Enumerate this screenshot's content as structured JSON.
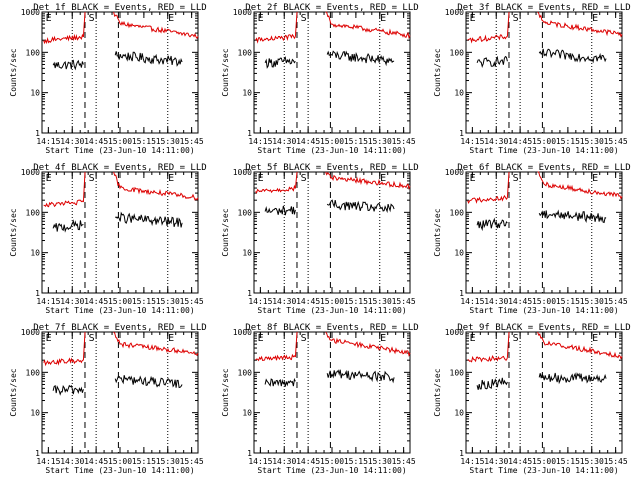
{
  "figure": {
    "background": "#ffffff",
    "axis_color": "#000000"
  },
  "chart_data": [
    {
      "type": "line",
      "title": "Det 1f BLACK = Events, RED = LLD",
      "xlabel": "Start Time (23-Jun-10 14:11:00)",
      "ylabel": "Counts/sec",
      "x_ticks": [
        "14:15",
        "14:30",
        "14:45",
        "15:00",
        "15:15",
        "15:30",
        "15:45"
      ],
      "xlim": [
        "14:11",
        "15:49"
      ],
      "y_scale": "log",
      "ylim": [
        1,
        1000
      ],
      "y_ticks": [
        "1",
        "10",
        "100",
        "1000"
      ],
      "dotted_times": [
        "14:30",
        "14:45",
        "15:30"
      ],
      "dashed_times": [
        "14:38",
        "14:59"
      ],
      "markers": [
        {
          "label": "E",
          "time": "14:12"
        },
        {
          "label": "S",
          "time": "14:39"
        },
        {
          "label": "E",
          "time": "15:29"
        }
      ],
      "series": [
        {
          "name": "Events",
          "color": "#000000",
          "segments": [
            [
              [
                "14:18",
                48
              ],
              [
                "14:37",
                50
              ]
            ],
            [
              [
                "14:57",
                85
              ],
              [
                "15:39",
                58
              ]
            ]
          ]
        },
        {
          "name": "LLD",
          "color": "#dd0000",
          "segments": [
            [
              [
                "14:12",
                195
              ],
              [
                "14:37",
                240
              ]
            ],
            [
              [
                "14:37",
                240
              ],
              [
                "14:38",
                1000
              ]
            ],
            [
              [
                "14:56",
                1000
              ],
              [
                "15:00",
                520
              ],
              [
                "15:49",
                250
              ]
            ]
          ]
        }
      ]
    },
    {
      "type": "line",
      "title": "Det 2f BLACK = Events, RED = LLD",
      "xlabel": "Start Time (23-Jun-10 14:11:00)",
      "ylabel": "Counts/sec",
      "x_ticks": [
        "14:15",
        "14:30",
        "14:45",
        "15:00",
        "15:15",
        "15:30",
        "15:45"
      ],
      "xlim": [
        "14:11",
        "15:49"
      ],
      "y_scale": "log",
      "ylim": [
        1,
        1000
      ],
      "y_ticks": [
        "1",
        "10",
        "100",
        "1000"
      ],
      "dotted_times": [
        "14:30",
        "14:45",
        "15:30"
      ],
      "dashed_times": [
        "14:38",
        "14:59"
      ],
      "markers": [
        {
          "label": "E",
          "time": "14:12"
        },
        {
          "label": "S",
          "time": "14:39"
        },
        {
          "label": "E",
          "time": "15:29"
        }
      ],
      "series": [
        {
          "name": "Events",
          "color": "#000000",
          "segments": [
            [
              [
                "14:18",
                55
              ],
              [
                "14:37",
                60
              ]
            ],
            [
              [
                "14:57",
                88
              ],
              [
                "15:39",
                60
              ]
            ]
          ]
        },
        {
          "name": "LLD",
          "color": "#dd0000",
          "segments": [
            [
              [
                "14:12",
                200
              ],
              [
                "14:37",
                245
              ]
            ],
            [
              [
                "14:37",
                245
              ],
              [
                "14:38",
                1000
              ]
            ],
            [
              [
                "14:56",
                1000
              ],
              [
                "15:00",
                500
              ],
              [
                "15:49",
                260
              ]
            ]
          ]
        }
      ]
    },
    {
      "type": "line",
      "title": "Det 3f BLACK = Events, RED = LLD",
      "xlabel": "Start Time (23-Jun-10 14:11:00)",
      "ylabel": "Counts/sec",
      "x_ticks": [
        "14:15",
        "14:30",
        "14:45",
        "15:00",
        "15:15",
        "15:30",
        "15:45"
      ],
      "xlim": [
        "14:11",
        "15:49"
      ],
      "y_scale": "log",
      "ylim": [
        1,
        1000
      ],
      "y_ticks": [
        "1",
        "10",
        "100",
        "1000"
      ],
      "dotted_times": [
        "14:30",
        "14:45",
        "15:30"
      ],
      "dashed_times": [
        "14:38",
        "14:59"
      ],
      "markers": [
        {
          "label": "E",
          "time": "14:12"
        },
        {
          "label": "S",
          "time": "14:39"
        },
        {
          "label": "E",
          "time": "15:29"
        }
      ],
      "series": [
        {
          "name": "Events",
          "color": "#000000",
          "segments": [
            [
              [
                "14:18",
                55
              ],
              [
                "14:37",
                60
              ]
            ],
            [
              [
                "14:57",
                95
              ],
              [
                "15:39",
                70
              ]
            ]
          ]
        },
        {
          "name": "LLD",
          "color": "#dd0000",
          "segments": [
            [
              [
                "14:12",
                200
              ],
              [
                "14:37",
                245
              ]
            ],
            [
              [
                "14:37",
                245
              ],
              [
                "14:38",
                1000
              ]
            ],
            [
              [
                "14:56",
                1000
              ],
              [
                "15:00",
                550
              ],
              [
                "15:49",
                280
              ]
            ]
          ]
        }
      ]
    },
    {
      "type": "line",
      "title": "Det 4f BLACK = Events, RED = LLD",
      "xlabel": "Start Time (23-Jun-10 14:11:00)",
      "ylabel": "Counts/sec",
      "x_ticks": [
        "14:15",
        "14:30",
        "14:45",
        "15:00",
        "15:15",
        "15:30",
        "15:45"
      ],
      "xlim": [
        "14:11",
        "15:49"
      ],
      "y_scale": "log",
      "ylim": [
        1,
        1000
      ],
      "y_ticks": [
        "1",
        "10",
        "100",
        "1000"
      ],
      "dotted_times": [
        "14:30",
        "14:45",
        "15:30"
      ],
      "dashed_times": [
        "14:38",
        "14:59"
      ],
      "markers": [
        {
          "label": "E",
          "time": "14:12"
        },
        {
          "label": "S",
          "time": "14:39"
        },
        {
          "label": "E",
          "time": "15:29"
        }
      ],
      "series": [
        {
          "name": "Events",
          "color": "#000000",
          "segments": [
            [
              [
                "14:18",
                40
              ],
              [
                "14:37",
                50
              ]
            ],
            [
              [
                "14:57",
                75
              ],
              [
                "15:39",
                55
              ]
            ]
          ]
        },
        {
          "name": "LLD",
          "color": "#dd0000",
          "segments": [
            [
              [
                "14:12",
                150
              ],
              [
                "14:37",
                180
              ]
            ],
            [
              [
                "14:37",
                180
              ],
              [
                "14:38",
                1000
              ]
            ],
            [
              [
                "14:56",
                1000
              ],
              [
                "15:00",
                400
              ],
              [
                "15:49",
                230
              ]
            ]
          ]
        }
      ]
    },
    {
      "type": "line",
      "title": "Det 5f BLACK = Events, RED = LLD",
      "xlabel": "Start Time (23-Jun-10 14:11:00)",
      "ylabel": "Counts/sec",
      "x_ticks": [
        "14:15",
        "14:30",
        "14:45",
        "15:00",
        "15:15",
        "15:30",
        "15:45"
      ],
      "xlim": [
        "14:11",
        "15:49"
      ],
      "y_scale": "log",
      "ylim": [
        1,
        1000
      ],
      "y_ticks": [
        "1",
        "10",
        "100",
        "1000"
      ],
      "dotted_times": [
        "14:30",
        "14:45",
        "15:30"
      ],
      "dashed_times": [
        "14:38",
        "14:59"
      ],
      "markers": [
        {
          "label": "E",
          "time": "14:12"
        },
        {
          "label": "S",
          "time": "14:39"
        },
        {
          "label": "E",
          "time": "15:29"
        }
      ],
      "series": [
        {
          "name": "Events",
          "color": "#000000",
          "segments": [
            [
              [
                "14:18",
                105
              ],
              [
                "14:37",
                115
              ]
            ],
            [
              [
                "14:57",
                160
              ],
              [
                "15:39",
                120
              ]
            ]
          ]
        },
        {
          "name": "LLD",
          "color": "#dd0000",
          "segments": [
            [
              [
                "14:12",
                330
              ],
              [
                "14:37",
                390
              ]
            ],
            [
              [
                "14:37",
                390
              ],
              [
                "14:38",
                1000
              ]
            ],
            [
              [
                "14:56",
                1000
              ],
              [
                "15:00",
                720
              ],
              [
                "15:49",
                440
              ]
            ]
          ]
        }
      ]
    },
    {
      "type": "line",
      "title": "Det 6f BLACK = Events, RED = LLD",
      "xlabel": "Start Time (23-Jun-10 14:11:00)",
      "ylabel": "Counts/sec",
      "x_ticks": [
        "14:15",
        "14:30",
        "14:45",
        "15:00",
        "15:15",
        "15:30",
        "15:45"
      ],
      "xlim": [
        "14:11",
        "15:49"
      ],
      "y_scale": "log",
      "ylim": [
        1,
        1000
      ],
      "y_ticks": [
        "1",
        "10",
        "100",
        "1000"
      ],
      "dotted_times": [
        "14:30",
        "14:45",
        "15:30"
      ],
      "dashed_times": [
        "14:38",
        "14:59"
      ],
      "markers": [
        {
          "label": "E",
          "time": "14:12"
        },
        {
          "label": "S",
          "time": "14:39"
        },
        {
          "label": "E",
          "time": "15:29"
        }
      ],
      "series": [
        {
          "name": "Events",
          "color": "#000000",
          "segments": [
            [
              [
                "14:18",
                48
              ],
              [
                "14:37",
                55
              ]
            ],
            [
              [
                "14:57",
                95
              ],
              [
                "15:39",
                72
              ]
            ]
          ]
        },
        {
          "name": "LLD",
          "color": "#dd0000",
          "segments": [
            [
              [
                "14:12",
                195
              ],
              [
                "14:37",
                230
              ]
            ],
            [
              [
                "14:37",
                230
              ],
              [
                "14:38",
                1000
              ]
            ],
            [
              [
                "14:56",
                1000
              ],
              [
                "15:00",
                500
              ],
              [
                "15:49",
                250
              ]
            ]
          ]
        }
      ]
    },
    {
      "type": "line",
      "title": "Det 7f BLACK = Events, RED = LLD",
      "xlabel": "Start Time (23-Jun-10 14:11:00)",
      "ylabel": "Counts/sec",
      "x_ticks": [
        "14:15",
        "14:30",
        "14:45",
        "15:00",
        "15:15",
        "15:30",
        "15:45"
      ],
      "xlim": [
        "14:11",
        "15:49"
      ],
      "y_scale": "log",
      "ylim": [
        1,
        1000
      ],
      "y_ticks": [
        "1",
        "10",
        "100",
        "1000"
      ],
      "dotted_times": [
        "14:30",
        "14:45",
        "15:30"
      ],
      "dashed_times": [
        "14:38",
        "14:59"
      ],
      "markers": [
        {
          "label": "E",
          "time": "14:12"
        },
        {
          "label": "S",
          "time": "14:39"
        },
        {
          "label": "E",
          "time": "15:29"
        }
      ],
      "series": [
        {
          "name": "Events",
          "color": "#000000",
          "segments": [
            [
              [
                "14:18",
                35
              ],
              [
                "14:37",
                38
              ]
            ],
            [
              [
                "14:57",
                70
              ],
              [
                "15:39",
                50
              ]
            ]
          ]
        },
        {
          "name": "LLD",
          "color": "#dd0000",
          "segments": [
            [
              [
                "14:12",
                175
              ],
              [
                "14:37",
                200
              ]
            ],
            [
              [
                "14:37",
                200
              ],
              [
                "14:38",
                1000
              ]
            ],
            [
              [
                "14:56",
                1000
              ],
              [
                "15:00",
                500
              ],
              [
                "15:49",
                300
              ]
            ]
          ]
        }
      ]
    },
    {
      "type": "line",
      "title": "Det 8f BLACK = Events, RED = LLD",
      "xlabel": "Start Time (23-Jun-10 14:11:00)",
      "ylabel": "Counts/sec",
      "x_ticks": [
        "14:15",
        "14:30",
        "14:45",
        "15:00",
        "15:15",
        "15:30",
        "15:45"
      ],
      "xlim": [
        "14:11",
        "15:49"
      ],
      "y_scale": "log",
      "ylim": [
        1,
        1000
      ],
      "y_ticks": [
        "1",
        "10",
        "100",
        "1000"
      ],
      "dotted_times": [
        "14:30",
        "14:45",
        "15:30"
      ],
      "dashed_times": [
        "14:38",
        "14:59"
      ],
      "markers": [
        {
          "label": "E",
          "time": "14:12"
        },
        {
          "label": "S",
          "time": "14:39"
        },
        {
          "label": "E",
          "time": "15:29"
        }
      ],
      "series": [
        {
          "name": "Events",
          "color": "#000000",
          "segments": [
            [
              [
                "14:18",
                50
              ],
              [
                "14:37",
                60
              ]
            ],
            [
              [
                "14:57",
                95
              ],
              [
                "15:39",
                75
              ]
            ]
          ]
        },
        {
          "name": "LLD",
          "color": "#dd0000",
          "segments": [
            [
              [
                "14:12",
                205
              ],
              [
                "14:37",
                240
              ]
            ],
            [
              [
                "14:37",
                240
              ],
              [
                "14:38",
                1000
              ]
            ],
            [
              [
                "14:56",
                1000
              ],
              [
                "15:00",
                620
              ],
              [
                "15:49",
                300
              ]
            ]
          ]
        }
      ]
    },
    {
      "type": "line",
      "title": "Det 9f BLACK = Events, RED = LLD",
      "xlabel": "Start Time (23-Jun-10 14:11:00)",
      "ylabel": "Counts/sec",
      "x_ticks": [
        "14:15",
        "14:30",
        "14:45",
        "15:00",
        "15:15",
        "15:30",
        "15:45"
      ],
      "xlim": [
        "14:11",
        "15:49"
      ],
      "y_scale": "log",
      "ylim": [
        1,
        1000
      ],
      "y_ticks": [
        "1",
        "10",
        "100",
        "1000"
      ],
      "dotted_times": [
        "14:30",
        "14:45",
        "15:30"
      ],
      "dashed_times": [
        "14:38",
        "14:59"
      ],
      "markers": [
        {
          "label": "E",
          "time": "14:12"
        },
        {
          "label": "S",
          "time": "14:39"
        },
        {
          "label": "E",
          "time": "15:29"
        }
      ],
      "series": [
        {
          "name": "Events",
          "color": "#000000",
          "segments": [
            [
              [
                "14:18",
                48
              ],
              [
                "14:37",
                58
              ]
            ],
            [
              [
                "14:57",
                75
              ],
              [
                "15:39",
                70
              ]
            ]
          ]
        },
        {
          "name": "LLD",
          "color": "#dd0000",
          "segments": [
            [
              [
                "14:12",
                205
              ],
              [
                "14:37",
                230
              ]
            ],
            [
              [
                "14:37",
                230
              ],
              [
                "14:38",
                1000
              ]
            ],
            [
              [
                "14:56",
                1000
              ],
              [
                "15:00",
                550
              ],
              [
                "15:49",
                250
              ]
            ]
          ]
        }
      ]
    }
  ]
}
